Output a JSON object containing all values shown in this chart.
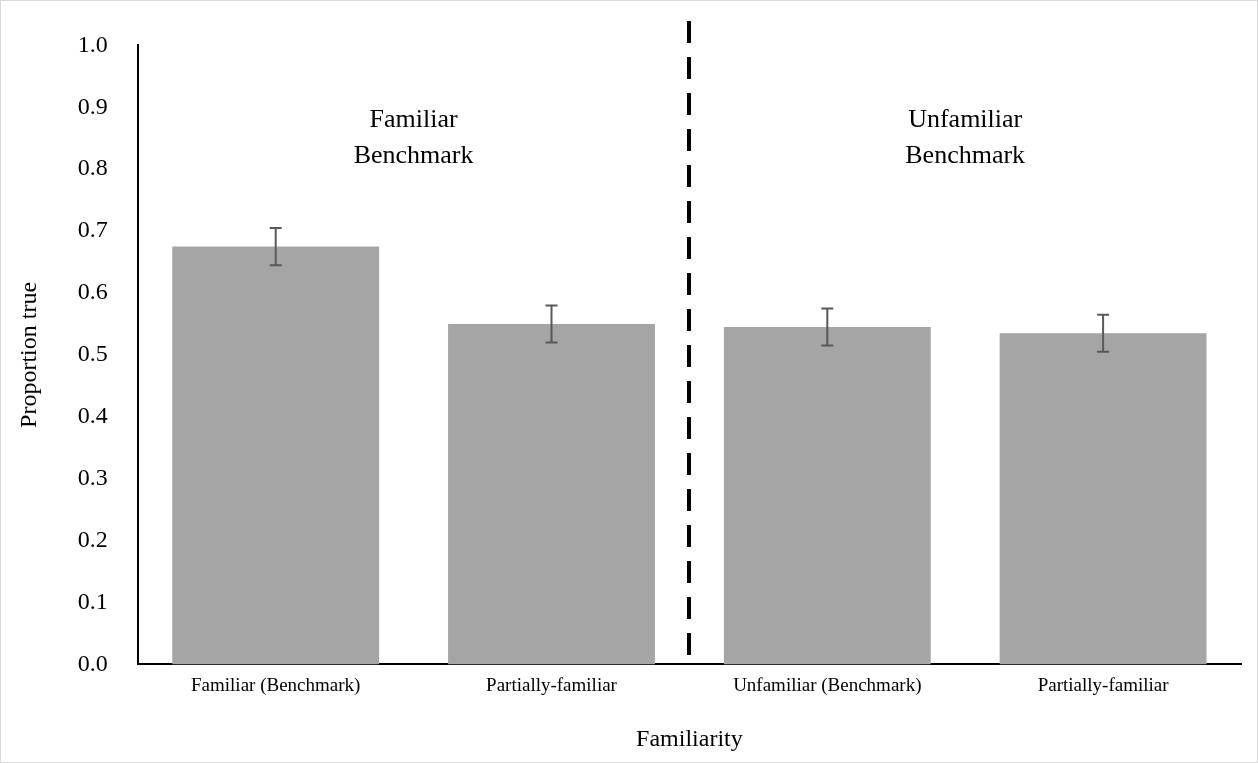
{
  "chart_data": {
    "type": "bar",
    "xlabel": "Familiarity",
    "ylabel": "Proportion true",
    "categories": [
      "Familiar (Benchmark)",
      "Partially-familiar",
      "Unfamiliar (Benchmark)",
      "Partially-familiar"
    ],
    "values": [
      0.675,
      0.55,
      0.545,
      0.535
    ],
    "errors": [
      0.03,
      0.03,
      0.03,
      0.03
    ],
    "color": "#a5a5a5",
    "ylim": [
      0,
      1
    ],
    "yticks": [
      {
        "value": 0,
        "label": "0.0"
      },
      {
        "value": 0.1,
        "label": "0.1"
      },
      {
        "value": 0.2,
        "label": "0.2"
      },
      {
        "value": 0.3,
        "label": "0.3"
      },
      {
        "value": 0.4,
        "label": "0.4"
      },
      {
        "value": 0.5,
        "label": "0.5"
      },
      {
        "value": 0.6,
        "label": "0.6"
      },
      {
        "value": 0.7,
        "label": "0.7"
      },
      {
        "value": 0.8,
        "label": "0.8"
      },
      {
        "value": 0.9,
        "label": "0.9"
      },
      {
        "value": 1,
        "label": "1.0"
      }
    ],
    "annotations": [
      "Familiar Benchmark",
      "Unfamiliar Benchmark"
    ],
    "grid": false,
    "legend": false
  }
}
